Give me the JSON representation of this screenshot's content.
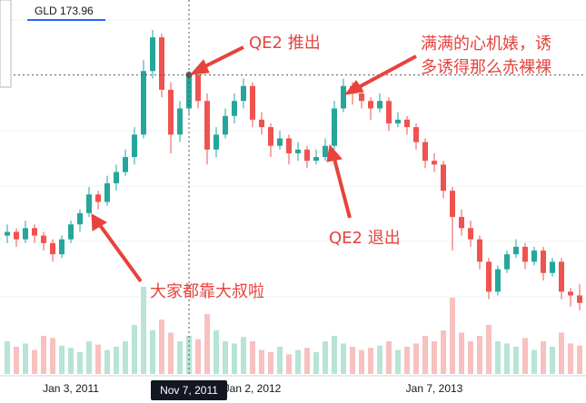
{
  "chart_data": {
    "type": "candlestick",
    "ohlc": [
      [
        131,
        134,
        129,
        132
      ],
      [
        132,
        133,
        128,
        130
      ],
      [
        130,
        135,
        129,
        133
      ],
      [
        133,
        134,
        129,
        131
      ],
      [
        131,
        132,
        127,
        129
      ],
      [
        129,
        130,
        124,
        126
      ],
      [
        126,
        131,
        125,
        130
      ],
      [
        130,
        135,
        129,
        134
      ],
      [
        134,
        138,
        132,
        137
      ],
      [
        137,
        144,
        136,
        142
      ],
      [
        142,
        143,
        138,
        140
      ],
      [
        140,
        147,
        139,
        145
      ],
      [
        145,
        150,
        143,
        148
      ],
      [
        148,
        154,
        147,
        152
      ],
      [
        152,
        160,
        150,
        158
      ],
      [
        158,
        178,
        157,
        175
      ],
      [
        175,
        186,
        173,
        184
      ],
      [
        184,
        185,
        168,
        170
      ],
      [
        170,
        172,
        153,
        158
      ],
      [
        158,
        167,
        156,
        165
      ],
      [
        165,
        175,
        163,
        174
      ],
      [
        174,
        176,
        165,
        167
      ],
      [
        167,
        169,
        150,
        154
      ],
      [
        154,
        160,
        152,
        158
      ],
      [
        158,
        165,
        157,
        163
      ],
      [
        163,
        169,
        161,
        167
      ],
      [
        167,
        173,
        165,
        171
      ],
      [
        171,
        172,
        160,
        162
      ],
      [
        162,
        164,
        158,
        160
      ],
      [
        160,
        161,
        152,
        155
      ],
      [
        155,
        159,
        154,
        157
      ],
      [
        157,
        158,
        150,
        153
      ],
      [
        153,
        156,
        151,
        154
      ],
      [
        154,
        155,
        149,
        151
      ],
      [
        151,
        154,
        150,
        152
      ],
      [
        152,
        157,
        151,
        155
      ],
      [
        155,
        167,
        154,
        165
      ],
      [
        165,
        173,
        164,
        171
      ],
      [
        171,
        172,
        166,
        169
      ],
      [
        169,
        171,
        165,
        167
      ],
      [
        167,
        168,
        162,
        165
      ],
      [
        165,
        169,
        164,
        167
      ],
      [
        167,
        168,
        159,
        161
      ],
      [
        161,
        164,
        160,
        162
      ],
      [
        162,
        163,
        158,
        160
      ],
      [
        160,
        161,
        154,
        156
      ],
      [
        156,
        157,
        149,
        151
      ],
      [
        151,
        153,
        148,
        150
      ],
      [
        150,
        151,
        141,
        143
      ],
      [
        143,
        144,
        127,
        136
      ],
      [
        136,
        138,
        131,
        133
      ],
      [
        133,
        135,
        128,
        130
      ],
      [
        130,
        131,
        122,
        124
      ],
      [
        124,
        125,
        114,
        116
      ],
      [
        116,
        123,
        115,
        122
      ],
      [
        122,
        127,
        121,
        126
      ],
      [
        126,
        130,
        125,
        128
      ],
      [
        128,
        129,
        122,
        124
      ],
      [
        124,
        128,
        123,
        127
      ],
      [
        127,
        128,
        119,
        121
      ],
      [
        121,
        125,
        120,
        124
      ],
      [
        124,
        125,
        114,
        116
      ],
      [
        116,
        117,
        112,
        115
      ],
      [
        115,
        118,
        111,
        113
      ]
    ],
    "volume": [
      30,
      25,
      28,
      22,
      35,
      33,
      26,
      24,
      20,
      30,
      27,
      22,
      25,
      30,
      45,
      80,
      40,
      50,
      38,
      30,
      35,
      32,
      55,
      40,
      30,
      28,
      34,
      30,
      22,
      20,
      25,
      18,
      22,
      24,
      20,
      30,
      35,
      28,
      25,
      22,
      24,
      26,
      30,
      22,
      25,
      28,
      35,
      30,
      40,
      70,
      38,
      30,
      35,
      45,
      30,
      28,
      25,
      33,
      22,
      30,
      25,
      38,
      28,
      26
    ],
    "up_color": "#26a69a",
    "down_color": "#ef5350",
    "up_volume_color": "#b7e4d5",
    "down_volume_color": "#f7c1c0",
    "ylim": [
      94,
      194
    ],
    "volume_lim": [
      0,
      100
    ],
    "categories": [
      null,
      null,
      null,
      null,
      null,
      null,
      null,
      "Jan 3, 2011",
      null,
      null,
      null,
      null,
      null,
      null,
      null,
      null,
      null,
      null,
      null,
      null,
      "Nov 7, 2011",
      null,
      null,
      null,
      null,
      null,
      null,
      "Jan 2, 2012",
      null,
      null,
      null,
      null,
      null,
      null,
      null,
      null,
      null,
      null,
      null,
      null,
      null,
      null,
      null,
      null,
      null,
      null,
      null,
      "Jan 7, 2013",
      null,
      null,
      null,
      null,
      null,
      null,
      null,
      null,
      null,
      null,
      null,
      null,
      null,
      null,
      null,
      null
    ],
    "crosshair": {
      "category": "Nov 7, 2011",
      "value": 173.96,
      "label": "GLD 173.96"
    },
    "annotations": [
      {
        "text": "QE2 推出"
      },
      {
        "lines": [
          "满满的心机婊，诱",
          "多诱得那么赤裸裸"
        ]
      },
      {
        "text": "QE2 退出"
      },
      {
        "text": "大家都靠大叔啦"
      }
    ]
  }
}
